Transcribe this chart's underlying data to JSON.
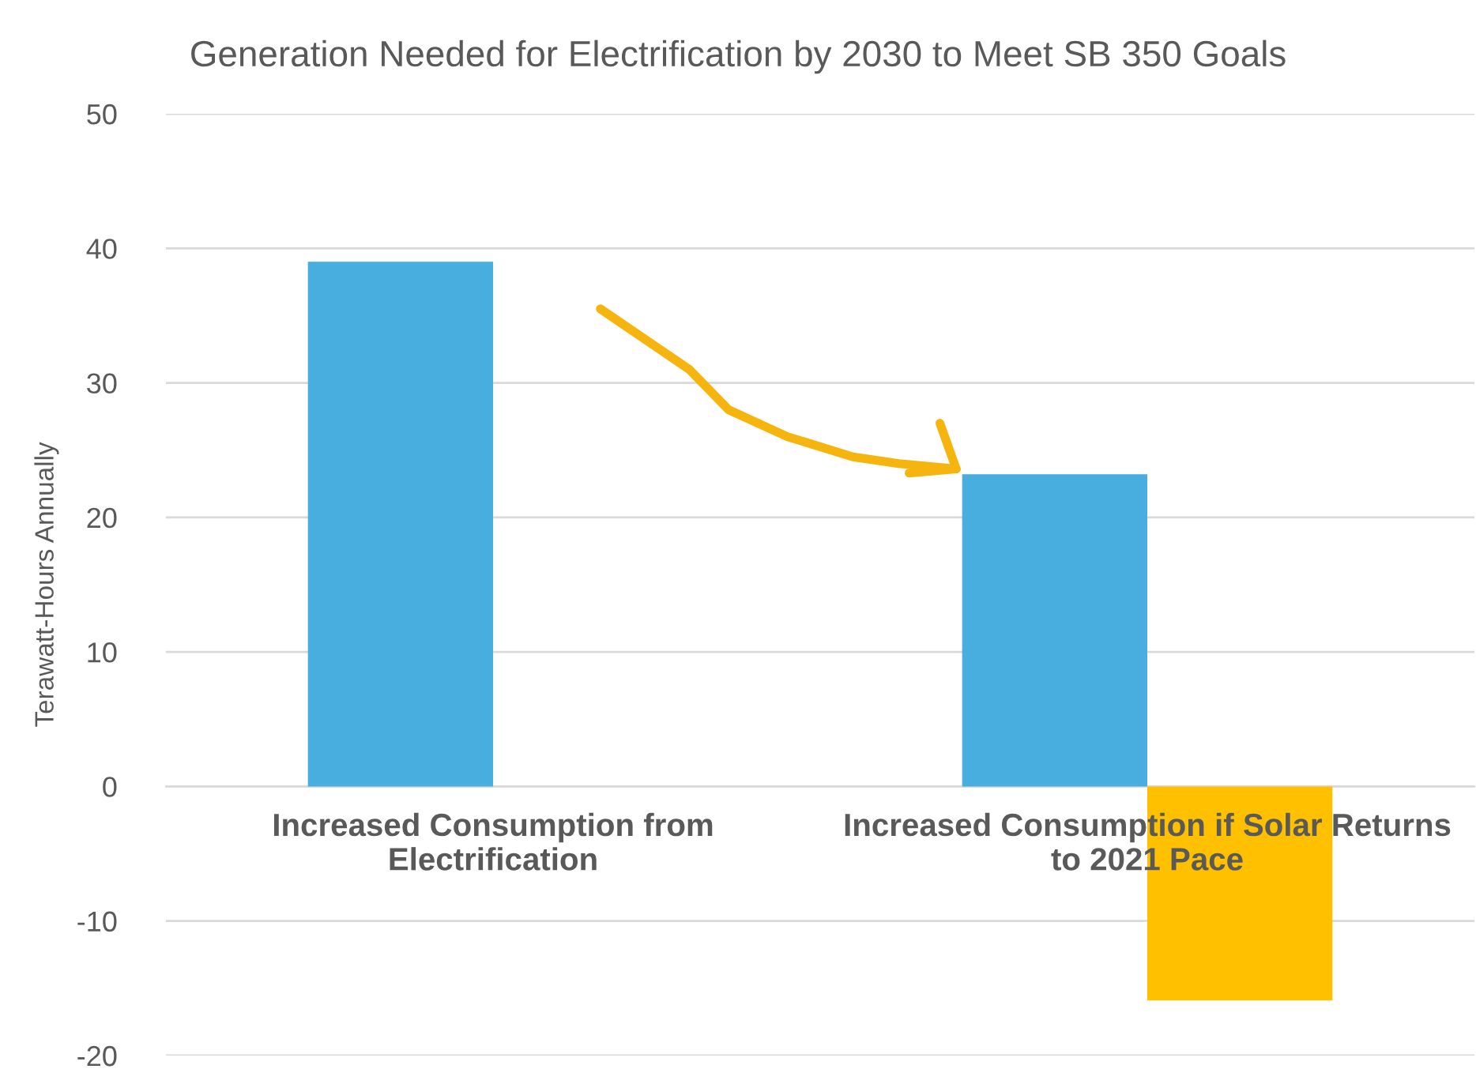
{
  "chart_data": {
    "type": "bar",
    "title": "Generation Needed for Electrification by 2030 to Meet SB 350 Goals",
    "ylabel": "Terawatt-Hours Annually",
    "categories": [
      "Increased Consumption from\nElectrification",
      "Increased Consumption if Solar Returns\nto 2021 Pace"
    ],
    "series": [
      {
        "color": "#47aedf",
        "values": [
          39.0,
          23.2
        ]
      },
      {
        "color": "#ffc000",
        "values": [
          null,
          -15.9
        ]
      }
    ],
    "ylim": [
      -20,
      50
    ],
    "yticks": [
      -20,
      -10,
      0,
      10,
      20,
      30,
      40,
      50
    ],
    "grid": "y",
    "legend": false
  }
}
